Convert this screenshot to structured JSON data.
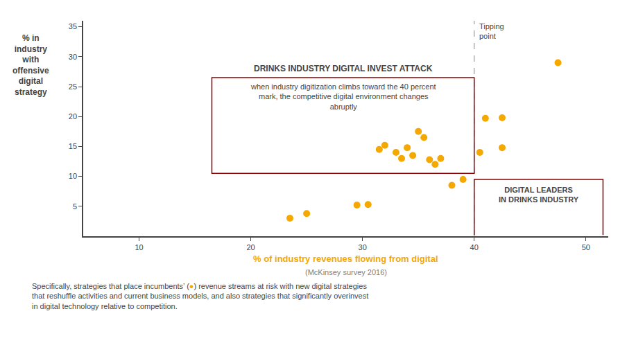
{
  "chart_data": {
    "type": "scatter",
    "x": [
      23.5,
      25.0,
      29.5,
      30.5,
      31.5,
      32.0,
      33.0,
      33.5,
      34.0,
      34.5,
      35.0,
      35.5,
      36.0,
      36.5,
      37.0,
      38.0,
      39.0,
      40.5,
      41.0,
      42.5,
      42.5,
      47.5
    ],
    "values": [
      3.0,
      3.8,
      5.2,
      5.3,
      14.5,
      15.2,
      14.0,
      13.0,
      14.8,
      13.5,
      17.5,
      16.5,
      12.8,
      12.0,
      13.0,
      8.5,
      9.5,
      14.0,
      19.7,
      19.8,
      14.8,
      29.0
    ],
    "color": "#F5A800",
    "marker": "circle",
    "xlim": [
      5,
      52
    ],
    "ylim": [
      0,
      36
    ],
    "xticks": [
      10,
      20,
      30,
      40,
      50
    ],
    "yticks": [
      5,
      10,
      15,
      20,
      25,
      30,
      35
    ],
    "grid": false,
    "xlabel": "% of industry revenues flowing from digital",
    "xlabel_sub": "(McKinsey survey 2016)",
    "ylabel": "% in\nindustry\nwith\noffensive\ndigital\nstrategy",
    "tipping_point": {
      "x": 40,
      "label": "Tipping\npoint",
      "color": "#999999"
    },
    "callout": {
      "title": "DRINKS INDUSTRY DIGITAL INVEST ATTACK",
      "text": "when industry digitization climbs toward the 40 percent\nmark, the competitive digital environment changes\nabruptly",
      "color": "#8B0000"
    },
    "leaders": {
      "label": "DIGITAL LEADERS\nIN DRINKS INDUSTRY",
      "color": "#8B0000"
    },
    "footer": [
      [
        {
          "text": "Specifically, strategies that place incumbents’ ("
        },
        {
          "text": "●",
          "color": "#F5A800"
        },
        {
          "text": ") revenue streams at risk with new digital strategies"
        }
      ],
      [
        {
          "text": "that reshuffle activities and current business models, and also strategies that significantly overinvest"
        }
      ],
      [
        {
          "text": "in digital technology relative to competition."
        }
      ]
    ]
  }
}
